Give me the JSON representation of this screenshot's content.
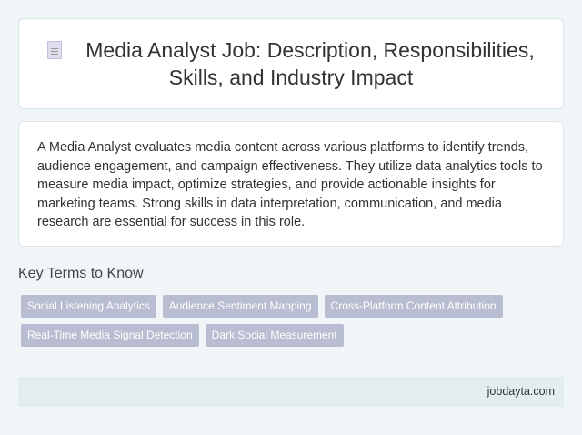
{
  "header": {
    "icon": "document-icon",
    "title": "Media Analyst Job: Description, Responsibilities, Skills, and Industry Impact"
  },
  "description": "A Media Analyst evaluates media content across various platforms to identify trends, audience engagement, and campaign effectiveness. They utilize data analytics tools to measure media impact, optimize strategies, and provide actionable insights for marketing teams. Strong skills in data interpretation, communication, and media research are essential for success in this role.",
  "key_terms": {
    "heading": "Key Terms to Know",
    "items": [
      "Social Listening Analytics",
      "Audience Sentiment Mapping",
      "Cross-Platform Content Attribution",
      "Real-Time Media Signal Detection",
      "Dark Social Measurement"
    ]
  },
  "footer": {
    "site": "jobdayta.com"
  }
}
